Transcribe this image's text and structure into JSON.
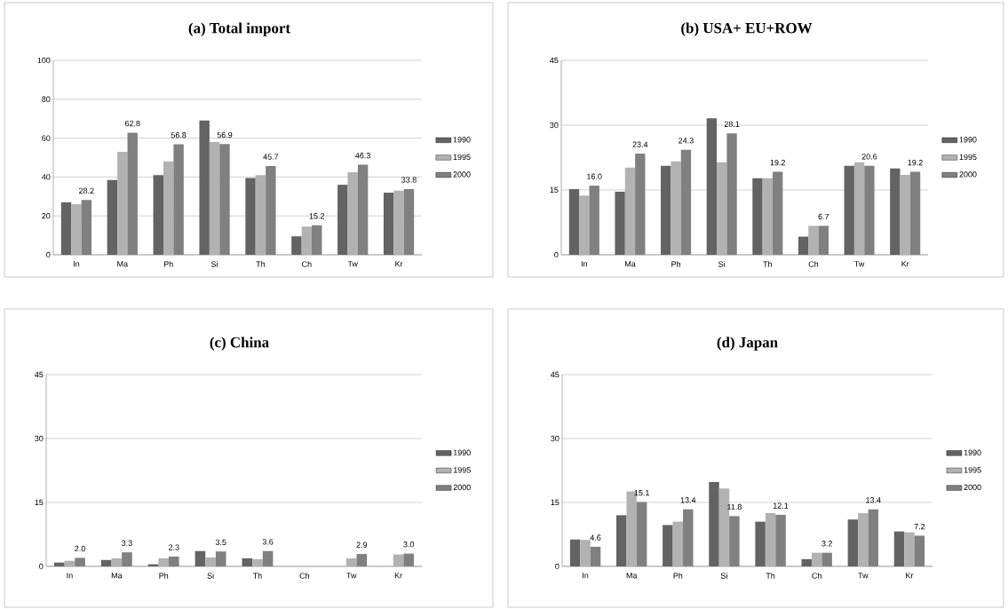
{
  "chart_data": [
    {
      "type": "bar",
      "title": "(a) Total import",
      "categories": [
        "In",
        "Ma",
        "Ph",
        "Si",
        "Th",
        "Ch",
        "Tw",
        "Kr"
      ],
      "ylim": [
        0,
        100
      ],
      "yticks": [
        0,
        20,
        40,
        60,
        80,
        100
      ],
      "grid": "y",
      "legend": "right",
      "series": [
        {
          "name": "1990",
          "color": "#636363",
          "values": [
            27,
            38.5,
            41,
            69,
            39.5,
            9.5,
            36,
            32
          ]
        },
        {
          "name": "1995",
          "color": "#b2b2b2",
          "values": [
            26,
            53,
            48,
            58,
            41,
            14.5,
            42.5,
            33
          ]
        },
        {
          "name": "2000",
          "color": "#808080",
          "values": [
            28.2,
            62.8,
            56.8,
            56.9,
            45.7,
            15.2,
            46.3,
            33.8
          ],
          "value_labels": [
            "28.2",
            "62.8",
            "56.8",
            "56.9",
            "45.7",
            "15.2",
            "46.3",
            "33.8"
          ]
        }
      ]
    },
    {
      "type": "bar",
      "title": "(b) USA+ EU+ROW",
      "categories": [
        "In",
        "Ma",
        "Ph",
        "Si",
        "Th",
        "Ch",
        "Tw",
        "Kr"
      ],
      "ylim": [
        0,
        45
      ],
      "yticks": [
        0,
        15,
        30,
        45
      ],
      "grid": "y",
      "legend": "right",
      "series": [
        {
          "name": "1990",
          "color": "#636363",
          "values": [
            15.2,
            14.6,
            20.6,
            31.6,
            17.7,
            4.2,
            20.6,
            20.0
          ]
        },
        {
          "name": "1995",
          "color": "#b2b2b2",
          "values": [
            13.7,
            20.2,
            21.6,
            21.4,
            17.7,
            6.7,
            21.4,
            18.5
          ]
        },
        {
          "name": "2000",
          "color": "#808080",
          "values": [
            16.0,
            23.4,
            24.3,
            28.1,
            19.2,
            6.7,
            20.6,
            19.2
          ],
          "value_labels": [
            "16.0",
            "23.4",
            "24.3",
            "28.1",
            "19.2",
            "6.7",
            "20.6",
            "19.2"
          ]
        }
      ]
    },
    {
      "type": "bar",
      "title": "(c) China",
      "categories": [
        "In",
        "Ma",
        "Ph",
        "Si",
        "Th",
        "Ch",
        "Tw",
        "Kr"
      ],
      "ylim": [
        0,
        45
      ],
      "yticks": [
        0,
        15,
        30,
        45
      ],
      "grid": "y",
      "legend": "right",
      "series": [
        {
          "name": "1990",
          "color": "#636363",
          "values": [
            0.9,
            1.5,
            0.5,
            3.6,
            1.9,
            null,
            null,
            null
          ]
        },
        {
          "name": "1995",
          "color": "#b2b2b2",
          "values": [
            1.3,
            1.9,
            1.9,
            2.1,
            1.7,
            null,
            1.9,
            2.8
          ]
        },
        {
          "name": "2000",
          "color": "#808080",
          "values": [
            2.0,
            3.3,
            2.3,
            3.5,
            3.6,
            null,
            2.9,
            3.0
          ],
          "value_labels": [
            "2.0",
            "3.3",
            "2.3",
            "3.5",
            "3.6",
            null,
            "2.9",
            "3.0"
          ]
        }
      ]
    },
    {
      "type": "bar",
      "title": "(d) Japan",
      "categories": [
        "In",
        "Ma",
        "Ph",
        "Si",
        "Th",
        "Ch",
        "Tw",
        "Kr"
      ],
      "ylim": [
        0,
        45
      ],
      "yticks": [
        0,
        15,
        30,
        45
      ],
      "grid": "y",
      "legend": "right",
      "series": [
        {
          "name": "1990",
          "color": "#636363",
          "values": [
            6.3,
            12,
            9.7,
            19.8,
            10.5,
            1.7,
            11,
            8.2
          ]
        },
        {
          "name": "1995",
          "color": "#b2b2b2",
          "values": [
            6.2,
            17.6,
            10.5,
            18.3,
            12.5,
            3.2,
            12.5,
            8.0
          ]
        },
        {
          "name": "2000",
          "color": "#808080",
          "values": [
            4.6,
            15.1,
            13.4,
            11.8,
            12.1,
            3.2,
            13.4,
            7.2
          ],
          "value_labels": [
            "4.6",
            "15.1",
            "13.4",
            "11.8",
            "12.1",
            "3.2",
            "13.4",
            "7.2"
          ]
        }
      ]
    }
  ]
}
